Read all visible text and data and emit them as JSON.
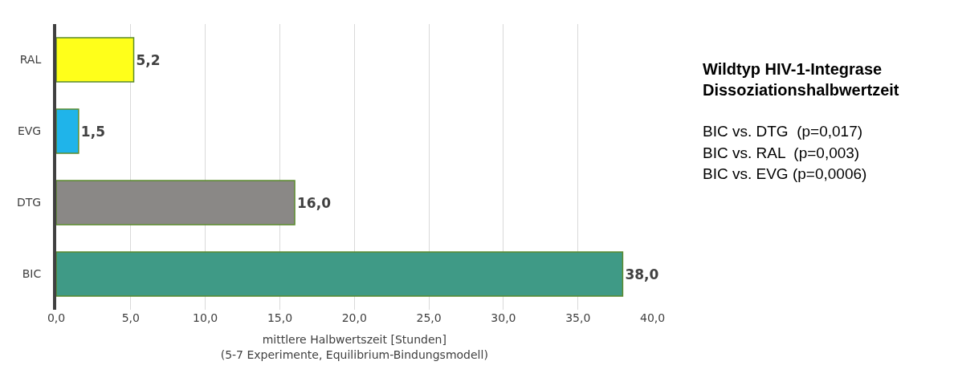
{
  "chart_data": {
    "type": "bar",
    "orientation": "horizontal",
    "title": "Wildtyp HIV-1-Integrase\nDissoziationshalbwertzeit",
    "xlabel": "mittlere Halbwertszeit [Stunden]\n(5-7 Experimente, Equilibrium-Bindungsmodell)",
    "categories": [
      "RAL",
      "EVG",
      "DTG",
      "BIC"
    ],
    "values": [
      5.2,
      1.5,
      16.0,
      38.0
    ],
    "value_labels": [
      "5,2",
      "1,5",
      "16,0",
      "38,0"
    ],
    "colors": [
      "#ffff1a",
      "#1fb4ea",
      "#8a8886",
      "#3f9a86"
    ],
    "xlim": [
      0,
      40
    ],
    "xticks": [
      {
        "value": 0,
        "label": "0,0"
      },
      {
        "value": 5,
        "label": "5,0"
      },
      {
        "value": 10,
        "label": "10,0"
      },
      {
        "value": 15,
        "label": "15,0"
      },
      {
        "value": 20,
        "label": "20,0"
      },
      {
        "value": 25,
        "label": "25,0"
      },
      {
        "value": 30,
        "label": "30,0"
      },
      {
        "value": 35,
        "label": "35,0"
      },
      {
        "value": 40,
        "label": "40,0"
      }
    ],
    "grid": "x",
    "annotations": [
      "BIC vs. DTG  (p=0,017)",
      "BIC vs. RAL  (p=0,003)",
      "BIC vs. EVG (p=0,0006)"
    ]
  }
}
